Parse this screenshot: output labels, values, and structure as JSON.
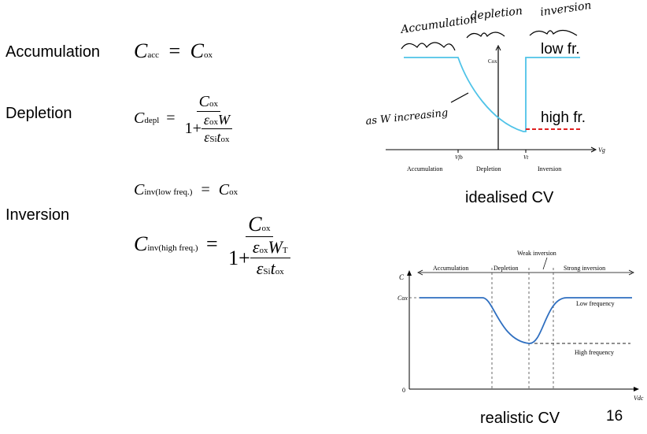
{
  "labels": {
    "accumulation": "Accumulation",
    "depletion": "Depletion",
    "inversion": "Inversion"
  },
  "equations": {
    "acc": {
      "lhs_var": "C",
      "lhs_sub": "acc",
      "rhs_var": "C",
      "rhs_sub": "ox"
    },
    "depl": {
      "lhs_var": "C",
      "lhs_sub": "depl",
      "num_var": "C",
      "num_sub": "ox",
      "one": "1+",
      "eps": "ε",
      "eps_ox_sub": "ox",
      "w": "W",
      "eps_si_sub": "Si",
      "t": "t",
      "t_sub": "ox"
    },
    "inv_low": {
      "lhs_var": "C",
      "lhs_sub": "inv(low freq.)",
      "rhs_var": "C",
      "rhs_sub": "ox"
    },
    "inv_high": {
      "lhs_var": "C",
      "lhs_sub": "inv(high freq.)",
      "num_var": "C",
      "num_sub": "ox",
      "one": "1+",
      "eps": "ε",
      "eps_ox_sub": "ox",
      "w": "W",
      "w_sub": "T",
      "eps_si_sub": "Si",
      "t": "t",
      "t_sub": "ox"
    }
  },
  "idealised": {
    "caption": "idealised CV",
    "annot_accumulation": "Accumulation",
    "annot_depletion": "depletion",
    "annot_inversion": "inversion",
    "annot_as": "as W increasing",
    "low_fr": "low fr.",
    "high_fr": "high fr.",
    "cox_label": "Cox",
    "vg_label": "Vg",
    "vfb_label": "Vfb",
    "vt_label": "Vt",
    "region_accumulation": "Accumulation",
    "region_depletion": "Depletion",
    "region_inversion": "Inversion",
    "colors": {
      "curve": "#4fc3e8",
      "high_freq": "#e02020"
    }
  },
  "realistic": {
    "caption": "realistic CV",
    "c_label": "C",
    "cox_label": "Cox",
    "zero_label": "0",
    "vdc_label": "Vdc",
    "weak_inversion": "Weak inversion",
    "region_accumulation": "Accumulation",
    "region_depletion": "Depletion",
    "region_strong_inversion": "Strong inversion",
    "low_frequency": "Low frequency",
    "high_frequency": "High frequency",
    "colors": {
      "curve": "#2f6fc0"
    }
  },
  "page_number": "16"
}
